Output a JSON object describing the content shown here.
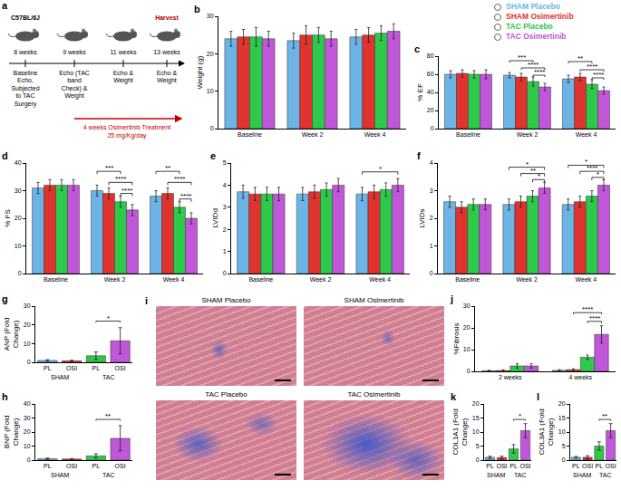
{
  "chart_data": [
    {
      "label": "b",
      "type": "bar",
      "ylabel": "Weight (g)",
      "categories": [
        "Baseline",
        "Week 2",
        "Week 4"
      ],
      "ylim": [
        0,
        30
      ],
      "yticks": [
        0,
        10,
        20,
        30
      ],
      "grid": false,
      "series": [
        {
          "name": "SHAM Placebo",
          "color": "#6cb4e6",
          "values": [
            24,
            23.5,
            24.5
          ],
          "errors": [
            2,
            2,
            2
          ]
        },
        {
          "name": "SHAM Osimertinib",
          "color": "#e0332e",
          "values": [
            24.5,
            25,
            25
          ],
          "errors": [
            2,
            2.5,
            2
          ]
        },
        {
          "name": "TAC Placebo",
          "color": "#2ec84a",
          "values": [
            24.5,
            25,
            25.5
          ],
          "errors": [
            2.5,
            2,
            2
          ]
        },
        {
          "name": "TAC Osimertinib",
          "color": "#c056d8",
          "values": [
            24,
            24,
            26
          ],
          "errors": [
            2,
            2,
            2
          ]
        }
      ],
      "significance": []
    },
    {
      "label": "c",
      "type": "bar",
      "ylabel": "% EF",
      "categories": [
        "Baseline",
        "Week 2",
        "Week 4"
      ],
      "ylim": [
        0,
        80
      ],
      "yticks": [
        0,
        20,
        40,
        60,
        80
      ],
      "grid": false,
      "series": [
        {
          "name": "SHAM Placebo",
          "color": "#6cb4e6",
          "values": [
            60,
            59,
            55
          ],
          "errors": [
            4,
            3,
            4
          ]
        },
        {
          "name": "SHAM Osimertinib",
          "color": "#e0332e",
          "values": [
            61,
            57,
            57
          ],
          "errors": [
            4,
            4,
            4
          ]
        },
        {
          "name": "TAC Placebo",
          "color": "#2ec84a",
          "values": [
            60,
            52,
            49
          ],
          "errors": [
            4,
            5,
            5
          ]
        },
        {
          "name": "TAC Osimertinib",
          "color": "#c056d8",
          "values": [
            60,
            46,
            42
          ],
          "errors": [
            5,
            4,
            4
          ]
        }
      ],
      "significance": [
        {
          "group": "Week 2",
          "from": "TAC Placebo",
          "to": "TAC Osimertinib",
          "y": 59,
          "text": "****"
        },
        {
          "group": "Week 2",
          "from": "SHAM Osimertinib",
          "to": "TAC Osimertinib",
          "y": 67,
          "text": "****"
        },
        {
          "group": "Week 2",
          "from": "SHAM Placebo",
          "to": "TAC Placebo",
          "y": 75,
          "text": "***"
        },
        {
          "group": "Week 4",
          "from": "TAC Placebo",
          "to": "TAC Osimertinib",
          "y": 56,
          "text": "****"
        },
        {
          "group": "Week 4",
          "from": "SHAM Osimertinib",
          "to": "TAC Osimertinib",
          "y": 65,
          "text": "****"
        },
        {
          "group": "Week 4",
          "from": "SHAM Placebo",
          "to": "TAC Placebo",
          "y": 74,
          "text": "**"
        }
      ]
    },
    {
      "label": "d",
      "type": "bar",
      "ylabel": "% FS",
      "categories": [
        "Baseline",
        "Week 2",
        "Week 4"
      ],
      "ylim": [
        0,
        40
      ],
      "yticks": [
        0,
        10,
        20,
        30,
        40
      ],
      "grid": false,
      "series": [
        {
          "name": "SHAM Placebo",
          "color": "#6cb4e6",
          "values": [
            31,
            30,
            28
          ],
          "errors": [
            2,
            2,
            2
          ]
        },
        {
          "name": "SHAM Osimertinib",
          "color": "#e0332e",
          "values": [
            32,
            29,
            29
          ],
          "errors": [
            2,
            2,
            2
          ]
        },
        {
          "name": "TAC Placebo",
          "color": "#2ec84a",
          "values": [
            32,
            26,
            24
          ],
          "errors": [
            2,
            2,
            2
          ]
        },
        {
          "name": "TAC Osimertinib",
          "color": "#c056d8",
          "values": [
            32,
            23,
            20
          ],
          "errors": [
            2,
            2,
            2
          ]
        }
      ],
      "significance": [
        {
          "group": "Week 2",
          "from": "TAC Placebo",
          "to": "TAC Osimertinib",
          "y": 29,
          "text": "****"
        },
        {
          "group": "Week 2",
          "from": "SHAM Osimertinib",
          "to": "TAC Osimertinib",
          "y": 33,
          "text": "****"
        },
        {
          "group": "Week 2",
          "from": "SHAM Placebo",
          "to": "TAC Placebo",
          "y": 37,
          "text": "***"
        },
        {
          "group": "Week 4",
          "from": "TAC Placebo",
          "to": "TAC Osimertinib",
          "y": 27,
          "text": "****"
        },
        {
          "group": "Week 4",
          "from": "SHAM Osimertinib",
          "to": "TAC Osimertinib",
          "y": 33,
          "text": "****"
        },
        {
          "group": "Week 4",
          "from": "SHAM Placebo",
          "to": "TAC Placebo",
          "y": 37,
          "text": "**"
        }
      ]
    },
    {
      "label": "e",
      "type": "bar",
      "ylabel": "LVIDd",
      "categories": [
        "Baseline",
        "Week 2",
        "Week 4"
      ],
      "ylim": [
        0,
        5
      ],
      "yticks": [
        0,
        1,
        2,
        3,
        4,
        5
      ],
      "grid": false,
      "series": [
        {
          "name": "SHAM Placebo",
          "color": "#6cb4e6",
          "values": [
            3.7,
            3.6,
            3.6
          ],
          "errors": [
            0.3,
            0.3,
            0.3
          ]
        },
        {
          "name": "SHAM Osimertinib",
          "color": "#e0332e",
          "values": [
            3.6,
            3.7,
            3.7
          ],
          "errors": [
            0.3,
            0.3,
            0.3
          ]
        },
        {
          "name": "TAC Placebo",
          "color": "#2ec84a",
          "values": [
            3.6,
            3.8,
            3.8
          ],
          "errors": [
            0.3,
            0.3,
            0.3
          ]
        },
        {
          "name": "TAC Osimertinib",
          "color": "#c056d8",
          "values": [
            3.6,
            4.0,
            4.0
          ],
          "errors": [
            0.3,
            0.3,
            0.3
          ]
        }
      ],
      "significance": [
        {
          "group": "Week 4",
          "from": "SHAM Placebo",
          "to": "TAC Osimertinib",
          "y": 4.6,
          "text": "*"
        }
      ]
    },
    {
      "label": "f",
      "type": "bar",
      "ylabel": "LVIDs",
      "categories": [
        "Baseline",
        "Week 2",
        "Week 4"
      ],
      "ylim": [
        0,
        4
      ],
      "yticks": [
        0,
        1,
        2,
        3,
        4
      ],
      "grid": false,
      "series": [
        {
          "name": "SHAM Placebo",
          "color": "#6cb4e6",
          "values": [
            2.6,
            2.5,
            2.5
          ],
          "errors": [
            0.2,
            0.2,
            0.2
          ]
        },
        {
          "name": "SHAM Osimertinib",
          "color": "#e0332e",
          "values": [
            2.4,
            2.6,
            2.6
          ],
          "errors": [
            0.2,
            0.2,
            0.2
          ]
        },
        {
          "name": "TAC Placebo",
          "color": "#2ec84a",
          "values": [
            2.5,
            2.8,
            2.8
          ],
          "errors": [
            0.2,
            0.2,
            0.2
          ]
        },
        {
          "name": "TAC Osimertinib",
          "color": "#c056d8",
          "values": [
            2.5,
            3.1,
            3.2
          ],
          "errors": [
            0.2,
            0.2,
            0.2
          ]
        }
      ],
      "significance": [
        {
          "group": "Week 2",
          "from": "TAC Placebo",
          "to": "TAC Osimertinib",
          "y": 3.4,
          "text": "*"
        },
        {
          "group": "Week 2",
          "from": "SHAM Osimertinib",
          "to": "TAC Osimertinib",
          "y": 3.62,
          "text": "**"
        },
        {
          "group": "Week 2",
          "from": "SHAM Placebo",
          "to": "TAC Osimertinib",
          "y": 3.85,
          "text": "*"
        },
        {
          "group": "Week 4",
          "from": "TAC Placebo",
          "to": "TAC Osimertinib",
          "y": 3.48,
          "text": "*"
        },
        {
          "group": "Week 4",
          "from": "SHAM Osimertinib",
          "to": "TAC Osimertinib",
          "y": 3.7,
          "text": "****"
        },
        {
          "group": "Week 4",
          "from": "SHAM Placebo",
          "to": "TAC Osimertinib",
          "y": 3.92,
          "text": "*"
        }
      ]
    },
    {
      "label": "g",
      "type": "bar",
      "ylabel": "ANP (Fold Change)",
      "categories": [
        "PL",
        "OSI",
        "PL",
        "OSI"
      ],
      "values": [
        1,
        0.8,
        3.5,
        11.5
      ],
      "errors": [
        0.4,
        0.3,
        2,
        7
      ],
      "colors": [
        "#6cb4e6",
        "#e0332e",
        "#2ec84a",
        "#c056d8"
      ],
      "groups": [
        {
          "label": "SHAM",
          "from": 0,
          "to": 1
        },
        {
          "label": "TAC",
          "from": 2,
          "to": 3
        }
      ],
      "ylim": [
        0,
        30
      ],
      "yticks": [
        0,
        10,
        20,
        30
      ],
      "grid": false,
      "significance": [
        {
          "from": 2,
          "to": 3,
          "y": 22,
          "text": "*"
        }
      ]
    },
    {
      "label": "h",
      "type": "bar",
      "ylabel": "BNP (Fold Change)",
      "categories": [
        "PL",
        "OSI",
        "PL",
        "OSI"
      ],
      "values": [
        1,
        0.8,
        3,
        15.5
      ],
      "errors": [
        0.5,
        0.3,
        1.5,
        9
      ],
      "colors": [
        "#6cb4e6",
        "#e0332e",
        "#2ec84a",
        "#c056d8"
      ],
      "groups": [
        {
          "label": "SHAM",
          "from": 0,
          "to": 1
        },
        {
          "label": "TAC",
          "from": 2,
          "to": 3
        }
      ],
      "ylim": [
        0,
        40
      ],
      "yticks": [
        0,
        10,
        20,
        30,
        40
      ],
      "grid": false,
      "significance": [
        {
          "from": 2,
          "to": 3,
          "y": 29,
          "text": "**"
        }
      ]
    },
    {
      "label": "j",
      "type": "bar",
      "ylabel": "%Fibrosis",
      "categories": [
        "2 weeks",
        "4 weeks"
      ],
      "ylim": [
        0,
        30
      ],
      "yticks": [
        0,
        10,
        20,
        30
      ],
      "grid": false,
      "series": [
        {
          "name": "SHAM Placebo",
          "color": "#6cb4e6",
          "values": [
            0.3,
            0.5
          ],
          "errors": [
            0.2,
            0.3
          ]
        },
        {
          "name": "SHAM Osimertinib",
          "color": "#e0332e",
          "values": [
            0.4,
            0.8
          ],
          "errors": [
            0.3,
            0.4
          ]
        },
        {
          "name": "TAC Placebo",
          "color": "#2ec84a",
          "values": [
            2.5,
            6.5
          ],
          "errors": [
            1,
            1
          ]
        },
        {
          "name": "TAC Osimertinib",
          "color": "#c056d8",
          "values": [
            2.5,
            17
          ],
          "errors": [
            1,
            4
          ]
        }
      ],
      "significance": [
        {
          "group": "4 weeks",
          "from": "TAC Placebo",
          "to": "TAC Osimertinib",
          "y": 23,
          "text": "****"
        },
        {
          "group": "4 weeks",
          "from": "SHAM Osimertinib",
          "to": "TAC Osimertinib",
          "y": 27,
          "text": "****"
        }
      ]
    },
    {
      "label": "k",
      "type": "bar",
      "ylabel": "COL1A1 (Fold Change)",
      "categories": [
        "PL",
        "OSI",
        "PL",
        "OSI"
      ],
      "values": [
        1,
        0.9,
        4,
        10.5
      ],
      "errors": [
        0.4,
        0.5,
        1.5,
        2.5
      ],
      "colors": [
        "#6cb4e6",
        "#e0332e",
        "#2ec84a",
        "#c056d8"
      ],
      "groups": [
        {
          "label": "SHAM",
          "from": 0,
          "to": 1
        },
        {
          "label": "TAC",
          "from": 2,
          "to": 3
        }
      ],
      "ylim": [
        0,
        20
      ],
      "yticks": [
        0,
        5,
        10,
        15,
        20
      ],
      "grid": false,
      "significance": [
        {
          "from": 2,
          "to": 3,
          "y": 14.5,
          "text": "*"
        }
      ]
    },
    {
      "label": "l",
      "type": "bar",
      "ylabel": "COL3A1 (Fold Change)",
      "categories": [
        "PL",
        "OSI",
        "PL",
        "OSI"
      ],
      "values": [
        1,
        1,
        5,
        10.5
      ],
      "errors": [
        0.3,
        0.6,
        1.5,
        2.5
      ],
      "colors": [
        "#6cb4e6",
        "#e0332e",
        "#2ec84a",
        "#c056d8"
      ],
      "groups": [
        {
          "label": "SHAM",
          "from": 0,
          "to": 1
        },
        {
          "label": "TAC",
          "from": 2,
          "to": 3
        }
      ],
      "ylim": [
        0,
        20
      ],
      "yticks": [
        0,
        5,
        10,
        15,
        20
      ],
      "grid": false,
      "significance": [
        {
          "from": 2,
          "to": 3,
          "y": 14.5,
          "text": "**"
        }
      ]
    }
  ],
  "schematic": {
    "label": "a",
    "strain": "C57BL/6J",
    "timepoints": [
      {
        "age": "8 weeks",
        "event": "Baseline Echo, Subjected to TAC Surgery"
      },
      {
        "age": "9 weeks",
        "event": "Echo (TAC band Check) & Weight"
      },
      {
        "age": "11 weeks",
        "event": "Echo & Weight"
      },
      {
        "age": "13 weeks",
        "event": "Echo & Weight"
      }
    ],
    "harvest": "Harvest",
    "treatment": "4 weeks Osimertinib Treatment",
    "dose": "25 mg/Kg/day"
  },
  "histology": {
    "label": "i",
    "panels": [
      "SHAM Placebo",
      "SHAM Osimertinib",
      "TAC Placebo",
      "TAC Osimertinib"
    ]
  }
}
